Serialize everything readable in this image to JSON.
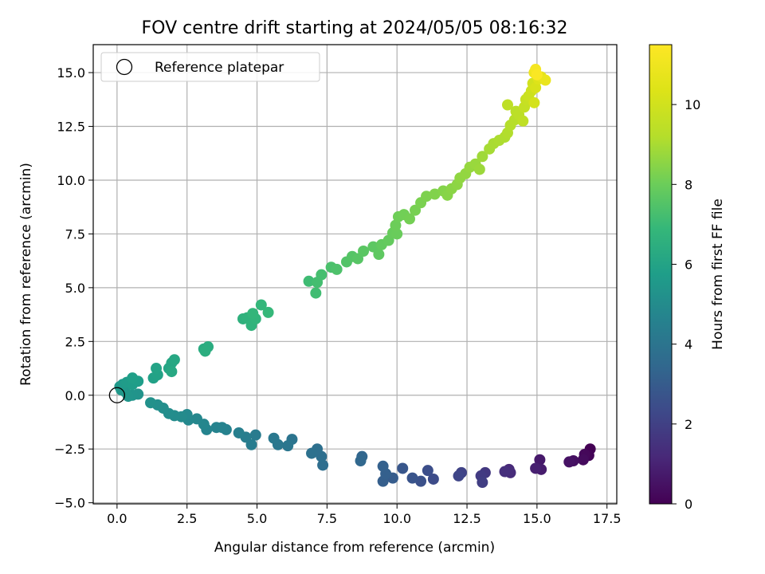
{
  "chart_data": {
    "type": "scatter",
    "title": "FOV centre drift starting at 2024/05/05 08:16:32",
    "xlabel": "Angular distance from reference (arcmin)",
    "ylabel": "Rotation from reference (arcmin)",
    "xlim": [
      -0.85,
      17.85
    ],
    "ylim": [
      -5.05,
      16.3
    ],
    "xticks": [
      0.0,
      2.5,
      5.0,
      7.5,
      10.0,
      12.5,
      15.0,
      17.5
    ],
    "xtick_labels": [
      "0.0",
      "2.5",
      "5.0",
      "7.5",
      "10.0",
      "12.5",
      "15.0",
      "17.5"
    ],
    "yticks": [
      -5.0,
      -2.5,
      0.0,
      2.5,
      5.0,
      7.5,
      10.0,
      12.5,
      15.0
    ],
    "ytick_labels": [
      "−5.0",
      "−2.5",
      "0.0",
      "2.5",
      "5.0",
      "7.5",
      "10.0",
      "12.5",
      "15.0"
    ],
    "grid": true,
    "legend": {
      "placement": "upper-left",
      "label": "Reference platepar"
    },
    "reference_point": {
      "x": 0.0,
      "y": 0.0
    },
    "colorbar": {
      "label": "Hours from first FF file",
      "colormap": "viridis",
      "range": [
        0,
        11.5
      ],
      "ticks": [
        0,
        2,
        4,
        6,
        8,
        10
      ],
      "tick_labels": [
        "0",
        "2",
        "4",
        "6",
        "8",
        "10"
      ]
    },
    "series": [
      {
        "points": [
          [
            16.9,
            -2.5,
            0.0
          ],
          [
            16.85,
            -2.8,
            0.1
          ],
          [
            16.7,
            -2.75,
            0.2
          ],
          [
            16.65,
            -3.0,
            0.3
          ],
          [
            16.3,
            -3.05,
            0.4
          ],
          [
            16.15,
            -3.1,
            0.5
          ],
          [
            15.1,
            -3.0,
            0.7
          ],
          [
            15.15,
            -3.45,
            0.8
          ],
          [
            14.95,
            -3.4,
            0.9
          ],
          [
            14.0,
            -3.45,
            1.2
          ],
          [
            14.05,
            -3.6,
            1.3
          ],
          [
            13.85,
            -3.55,
            1.4
          ],
          [
            13.15,
            -3.6,
            1.7
          ],
          [
            13.0,
            -3.75,
            1.8
          ],
          [
            13.05,
            -4.05,
            1.9
          ],
          [
            12.3,
            -3.6,
            2.1
          ],
          [
            12.2,
            -3.75,
            2.2
          ],
          [
            11.3,
            -3.9,
            2.4
          ],
          [
            11.1,
            -3.5,
            2.5
          ],
          [
            10.85,
            -4.0,
            2.6
          ],
          [
            10.55,
            -3.85,
            2.7
          ],
          [
            10.2,
            -3.4,
            2.8
          ],
          [
            9.85,
            -3.85,
            3.0
          ],
          [
            9.5,
            -4.0,
            3.1
          ],
          [
            9.6,
            -3.65,
            3.15
          ],
          [
            9.5,
            -3.3,
            3.2
          ],
          [
            8.75,
            -2.85,
            3.4
          ],
          [
            8.7,
            -3.05,
            3.45
          ],
          [
            7.35,
            -3.25,
            3.7
          ],
          [
            7.3,
            -2.85,
            3.75
          ],
          [
            7.15,
            -2.5,
            3.8
          ],
          [
            6.95,
            -2.7,
            3.85
          ],
          [
            6.25,
            -2.05,
            4.0
          ],
          [
            6.1,
            -2.35,
            4.05
          ],
          [
            5.75,
            -2.3,
            4.1
          ],
          [
            5.6,
            -2.0,
            4.15
          ],
          [
            4.95,
            -1.85,
            4.3
          ],
          [
            4.8,
            -2.3,
            4.35
          ],
          [
            4.6,
            -1.95,
            4.4
          ],
          [
            4.35,
            -1.75,
            4.45
          ],
          [
            3.9,
            -1.6,
            4.55
          ],
          [
            3.75,
            -1.5,
            4.6
          ],
          [
            3.55,
            -1.5,
            4.65
          ],
          [
            3.2,
            -1.6,
            4.7
          ],
          [
            3.1,
            -1.35,
            4.75
          ],
          [
            2.85,
            -1.1,
            4.8
          ],
          [
            2.55,
            -1.15,
            4.85
          ],
          [
            2.5,
            -0.9,
            4.9
          ],
          [
            2.3,
            -1.0,
            4.95
          ],
          [
            2.05,
            -0.95,
            5.0
          ],
          [
            1.85,
            -0.85,
            5.05
          ],
          [
            1.65,
            -0.6,
            5.1
          ],
          [
            1.45,
            -0.45,
            5.15
          ],
          [
            1.2,
            -0.35,
            5.2
          ],
          [
            0.75,
            0.05,
            5.3
          ],
          [
            0.55,
            0.0,
            5.35
          ],
          [
            0.4,
            -0.05,
            5.4
          ],
          [
            0.3,
            0.15,
            5.45
          ],
          [
            0.15,
            0.25,
            5.5
          ],
          [
            0.1,
            0.4,
            5.55
          ],
          [
            0.2,
            0.5,
            5.6
          ],
          [
            0.35,
            0.6,
            5.65
          ],
          [
            0.55,
            0.5,
            5.7
          ],
          [
            0.75,
            0.65,
            5.75
          ],
          [
            0.55,
            0.8,
            5.8
          ],
          [
            1.3,
            0.8,
            5.9
          ],
          [
            1.45,
            0.95,
            5.95
          ],
          [
            1.4,
            1.25,
            6.0
          ],
          [
            1.85,
            1.25,
            6.05
          ],
          [
            1.95,
            1.5,
            6.1
          ],
          [
            2.05,
            1.65,
            6.15
          ],
          [
            1.95,
            1.1,
            6.2
          ],
          [
            3.1,
            2.15,
            6.35
          ],
          [
            3.25,
            2.25,
            6.4
          ],
          [
            3.15,
            2.05,
            6.45
          ],
          [
            4.5,
            3.55,
            6.6
          ],
          [
            4.65,
            3.6,
            6.65
          ],
          [
            4.8,
            3.25,
            6.7
          ],
          [
            4.95,
            3.55,
            6.75
          ],
          [
            4.85,
            3.8,
            6.8
          ],
          [
            5.15,
            4.2,
            6.85
          ],
          [
            5.4,
            3.85,
            6.9
          ],
          [
            6.85,
            5.3,
            7.1
          ],
          [
            7.1,
            4.75,
            7.15
          ],
          [
            7.15,
            5.25,
            7.2
          ],
          [
            7.3,
            5.6,
            7.25
          ],
          [
            7.65,
            5.95,
            7.35
          ],
          [
            7.85,
            5.85,
            7.4
          ],
          [
            8.2,
            6.2,
            7.5
          ],
          [
            8.4,
            6.45,
            7.55
          ],
          [
            8.6,
            6.35,
            7.6
          ],
          [
            8.8,
            6.7,
            7.65
          ],
          [
            9.15,
            6.9,
            7.7
          ],
          [
            9.35,
            6.55,
            7.75
          ],
          [
            9.45,
            7.0,
            7.8
          ],
          [
            9.7,
            7.2,
            7.85
          ],
          [
            9.85,
            7.55,
            7.9
          ],
          [
            10.0,
            7.5,
            7.95
          ],
          [
            9.95,
            7.9,
            8.0
          ],
          [
            10.05,
            8.3,
            8.05
          ],
          [
            10.25,
            8.4,
            8.1
          ],
          [
            10.45,
            8.2,
            8.15
          ],
          [
            10.65,
            8.6,
            8.2
          ],
          [
            10.85,
            8.95,
            8.25
          ],
          [
            11.05,
            9.25,
            8.3
          ],
          [
            11.35,
            9.35,
            8.35
          ],
          [
            11.65,
            9.5,
            8.4
          ],
          [
            11.8,
            9.3,
            8.45
          ],
          [
            11.95,
            9.6,
            8.5
          ],
          [
            12.15,
            9.8,
            8.55
          ],
          [
            12.25,
            10.1,
            8.6
          ],
          [
            12.45,
            10.3,
            8.65
          ],
          [
            12.6,
            10.6,
            8.7
          ],
          [
            12.8,
            10.75,
            8.75
          ],
          [
            12.95,
            10.5,
            8.8
          ],
          [
            13.05,
            11.1,
            8.85
          ],
          [
            13.3,
            11.45,
            8.95
          ],
          [
            13.45,
            11.7,
            9.0
          ],
          [
            13.65,
            11.85,
            9.05
          ],
          [
            13.85,
            12.0,
            9.1
          ],
          [
            13.95,
            12.2,
            9.15
          ],
          [
            14.05,
            12.55,
            9.2
          ],
          [
            14.2,
            12.8,
            9.25
          ],
          [
            14.25,
            13.2,
            9.35
          ],
          [
            14.35,
            13.05,
            9.4
          ],
          [
            13.95,
            13.5,
            9.45
          ],
          [
            14.5,
            12.75,
            9.5
          ],
          [
            14.55,
            13.4,
            9.6
          ],
          [
            14.6,
            13.75,
            9.7
          ],
          [
            14.7,
            13.9,
            9.8
          ],
          [
            14.8,
            14.15,
            9.9
          ],
          [
            14.85,
            14.5,
            10.0
          ],
          [
            14.9,
            13.6,
            10.1
          ],
          [
            14.95,
            14.3,
            10.2
          ],
          [
            15.05,
            14.7,
            10.4
          ],
          [
            15.15,
            14.8,
            10.6
          ],
          [
            15.3,
            14.65,
            10.8
          ],
          [
            14.9,
            15.0,
            11.0
          ],
          [
            14.95,
            15.15,
            11.2
          ],
          [
            15.0,
            14.9,
            11.4
          ]
        ]
      }
    ]
  }
}
